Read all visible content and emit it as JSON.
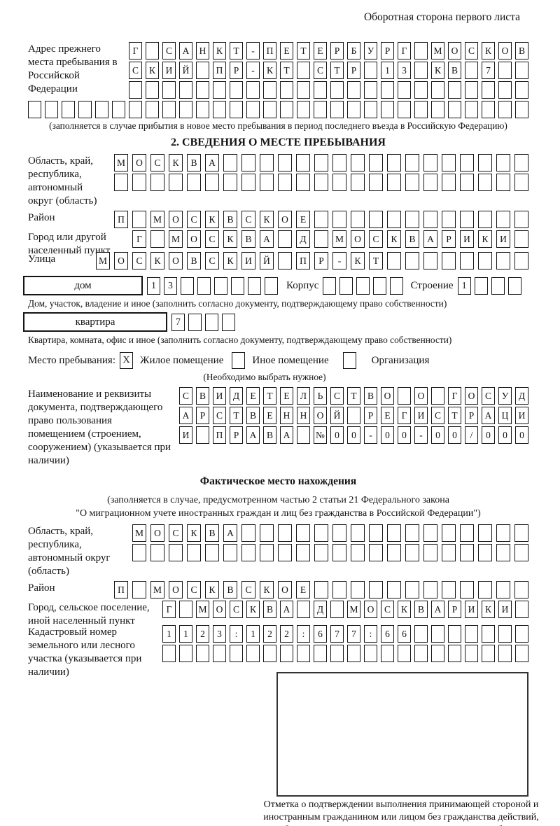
{
  "page_title": "Оборотная сторона первого листа",
  "prev_address": {
    "label": "Адрес прежнего места пребывания в Российской Федерации",
    "row1": {
      "cells": "Г САНКТ-ПЕТЕРБУРГ МОСКОВ",
      "len": 24
    },
    "row2": {
      "cells": "СКИЙ ПР-КТ СТР 13 КВ 7",
      "len": 24
    },
    "row3": {
      "cells": "",
      "len": 24
    },
    "row4": {
      "cells": "",
      "len": 30
    },
    "note": "(заполняется в случае прибытия в новое место пребывания в период последнего въезда в Российскую Федерацию)"
  },
  "section2": {
    "title": "2. СВЕДЕНИЯ О МЕСТЕ ПРЕБЫВАНИЯ",
    "region": {
      "label": "Область, край, республика, автономный округ (область)",
      "row1": {
        "cells": "МОСКВА",
        "len": 23
      },
      "row2": {
        "cells": "",
        "len": 23
      }
    },
    "district": {
      "label": "Район",
      "row": {
        "cells": "П МОСКВСКОЕ",
        "len": 23
      }
    },
    "city": {
      "label": "Город или другой населенный пункт",
      "row": {
        "cells": "Г МОСКВА Д МОСКВАРИКИ",
        "len": 22
      }
    },
    "street": {
      "label": "Улица",
      "row": {
        "cells": "МОСКОВСКИЙ ПР-КТ",
        "len": 24
      }
    },
    "house": {
      "box_label": "дом",
      "num": {
        "cells": "13",
        "len": 8
      },
      "korpus_label": "Корпус",
      "korpus": {
        "cells": "",
        "len": 5
      },
      "stroenie_label": "Строение",
      "stroenie": {
        "cells": "1",
        "len": 4
      },
      "note": "Дом, участок, владение и иное (заполнить согласно документу, подтверждающему право собственности)"
    },
    "apartment": {
      "box_label": "квартира",
      "num": {
        "cells": "7",
        "len": 4
      },
      "note": "Квартира, комната, офис и иное (заполнить согласно документу, подтверждающему право собственности)"
    },
    "stay_type": {
      "label": "Место пребывания:",
      "option1": {
        "mark": "X",
        "label": "Жилое помещение"
      },
      "option2": {
        "mark": "",
        "label": "Иное помещение"
      },
      "option3": {
        "mark": "",
        "label": "Организация"
      },
      "note": "(Необходимо выбрать нужное)"
    },
    "document": {
      "label": "Наименование и реквизиты документа, подтверждающего право пользования помещением (строением, сооружением) (указывается при наличии)",
      "row1": {
        "cells": "СВИДЕТЕЛЬСТВО О ГОСУД",
        "len": 21
      },
      "row2": {
        "cells": "АРСТВЕННОЙ РЕГИСТРАЦИ",
        "len": 21
      },
      "row3": {
        "cells": "И ПРАВА №00-00-00/000",
        "len": 21
      }
    }
  },
  "actual_location": {
    "title": "Фактическое место нахождения",
    "note_line1": "(заполняется в случае, предусмотренном частью 2 статьи 21 Федерального закона",
    "note_line2": "\"О миграционном учете иностранных граждан и лиц без гражданства в Российской Федерации\")",
    "region": {
      "label": "Область, край, республика, автономный округ (область)",
      "row1": {
        "cells": "МОСКВА",
        "len": 22
      },
      "row2": {
        "cells": "",
        "len": 22
      }
    },
    "district": {
      "label": "Район",
      "row": {
        "cells": "П МОСКВСКОЕ",
        "len": 23
      }
    },
    "city": {
      "label": "Город, сельское поселение, иной населенный пункт",
      "row": {
        "cells": "Г МОСКВА Д МОСКВАРИКИ",
        "len": 22
      }
    },
    "cadastral": {
      "label": "Кадастровый номер земельного или лесного участка (указывается при наличии)",
      "row1": {
        "cells": "1123:122:677:66",
        "len": 22
      },
      "row2": {
        "cells": "",
        "len": 22
      }
    },
    "stamp_caption": "Отметка о подтверждении выполнения принимающей стороной и иностранным гражданином или лицом без гражданства действий, необходимых для его постановки на учет по месту пребывания"
  }
}
